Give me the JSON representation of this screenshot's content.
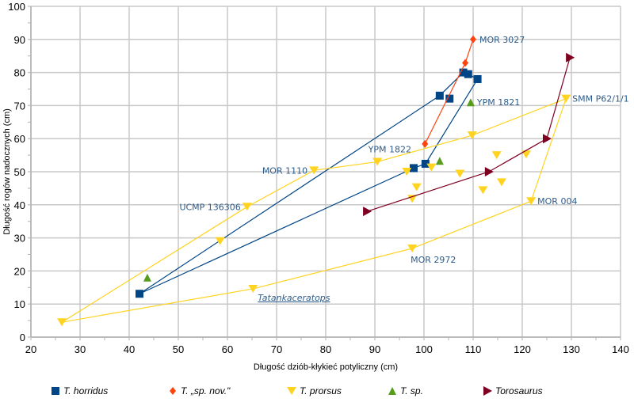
{
  "chart_data": {
    "type": "scatter",
    "title": "",
    "xlabel": "Długość dziób-kłykieć potyliczny (cm)",
    "ylabel": "Długość rogów nadocznych (cm)",
    "xlim": [
      20,
      140
    ],
    "ylim": [
      0,
      100
    ],
    "xticks": [
      20,
      30,
      40,
      50,
      60,
      70,
      80,
      90,
      100,
      110,
      120,
      130,
      140
    ],
    "yticks": [
      0,
      10,
      20,
      30,
      40,
      50,
      60,
      70,
      80,
      90,
      100
    ],
    "grid": true,
    "legend_position": "bottom",
    "series": [
      {
        "name": "T. horridus",
        "color": "#004586",
        "marker": "square",
        "points": [
          [
            42.1,
            13.1
          ],
          [
            103.2,
            73.0
          ],
          [
            108.0,
            80.0
          ],
          [
            109.0,
            79.5
          ],
          [
            110.9,
            78.0
          ],
          [
            100.3,
            52.4
          ],
          [
            97.9,
            51.1
          ],
          [
            105.2,
            72.1
          ]
        ],
        "path": [
          [
            42.1,
            13.1
          ],
          [
            103.2,
            73.0
          ],
          [
            108.0,
            80.0
          ],
          [
            109.0,
            79.5
          ],
          [
            110.9,
            78.0
          ],
          [
            100.3,
            52.4
          ],
          [
            97.9,
            51.1
          ],
          [
            42.1,
            13.1
          ]
        ]
      },
      {
        "name": "T. „sp. nov.\"",
        "color": "#ff420e",
        "marker": "diamond",
        "points": [
          [
            100.2,
            58.4
          ],
          [
            108.4,
            82.9
          ],
          [
            110.0,
            90.0
          ]
        ],
        "path": [
          [
            100.2,
            58.4
          ],
          [
            108.4,
            82.9
          ],
          [
            110.0,
            90.0
          ]
        ]
      },
      {
        "name": "T. prorsus",
        "color": "#ffd320",
        "marker": "triangle-down",
        "points": [
          [
            26.3,
            4.5
          ],
          [
            58.5,
            29.0
          ],
          [
            64.0,
            39.4
          ],
          [
            77.6,
            50.4
          ],
          [
            90.5,
            53.0
          ],
          [
            96.5,
            50.0
          ],
          [
            101.5,
            51.3
          ],
          [
            109.8,
            61.0
          ],
          [
            128.9,
            72.1
          ],
          [
            121.8,
            41.1
          ],
          [
            97.6,
            26.8
          ],
          [
            65.2,
            14.6
          ],
          [
            98.5,
            45.3
          ],
          [
            97.6,
            41.8
          ],
          [
            107.3,
            49.4
          ],
          [
            112.0,
            44.4
          ],
          [
            115.8,
            46.8
          ],
          [
            114.8,
            55.0
          ],
          [
            120.8,
            55.2
          ]
        ],
        "path": [
          [
            26.3,
            4.5
          ],
          [
            64.0,
            39.4
          ],
          [
            77.6,
            50.4
          ],
          [
            90.5,
            53.0
          ],
          [
            109.8,
            61.0
          ],
          [
            128.9,
            72.1
          ],
          [
            121.8,
            41.1
          ],
          [
            97.6,
            26.8
          ],
          [
            65.2,
            14.6
          ],
          [
            26.3,
            4.5
          ]
        ]
      },
      {
        "name": "T. sp.",
        "color": "#579d1c",
        "marker": "triangle-up",
        "points": [
          [
            43.7,
            18.0
          ],
          [
            103.2,
            53.3
          ],
          [
            109.5,
            71.0
          ]
        ],
        "path": []
      },
      {
        "name": "Torosaurus",
        "color": "#7e0021",
        "marker": "triangle-right",
        "points": [
          [
            88.4,
            38.0
          ],
          [
            113.2,
            50.0
          ],
          [
            125.0,
            60.0
          ],
          [
            129.7,
            84.5
          ]
        ],
        "path": [
          [
            88.4,
            38.0
          ],
          [
            113.2,
            50.0
          ],
          [
            125.0,
            60.0
          ],
          [
            129.7,
            84.5
          ]
        ]
      }
    ],
    "annotations": [
      {
        "text": "MOR 3027",
        "x": 110.0,
        "y": 90.0,
        "side": "right"
      },
      {
        "text": "YPM 1821",
        "x": 109.5,
        "y": 71.0,
        "side": "right"
      },
      {
        "text": "SMM P62/1/1",
        "x": 128.9,
        "y": 72.1,
        "side": "right"
      },
      {
        "text": "YPM 1822",
        "x": 97.9,
        "y": 51.1,
        "side": "above-left"
      },
      {
        "text": "MOR 1110",
        "x": 77.6,
        "y": 50.4,
        "side": "left"
      },
      {
        "text": "UCMP 136306",
        "x": 64.0,
        "y": 39.4,
        "side": "left"
      },
      {
        "text": "MOR 004",
        "x": 121.8,
        "y": 41.1,
        "side": "right"
      },
      {
        "text": "MOR 2972",
        "x": 97.6,
        "y": 26.8,
        "side": "below"
      },
      {
        "text": "Tatankaceratops",
        "x": 65.2,
        "y": 14.6,
        "side": "below-right",
        "underline": true
      }
    ]
  }
}
